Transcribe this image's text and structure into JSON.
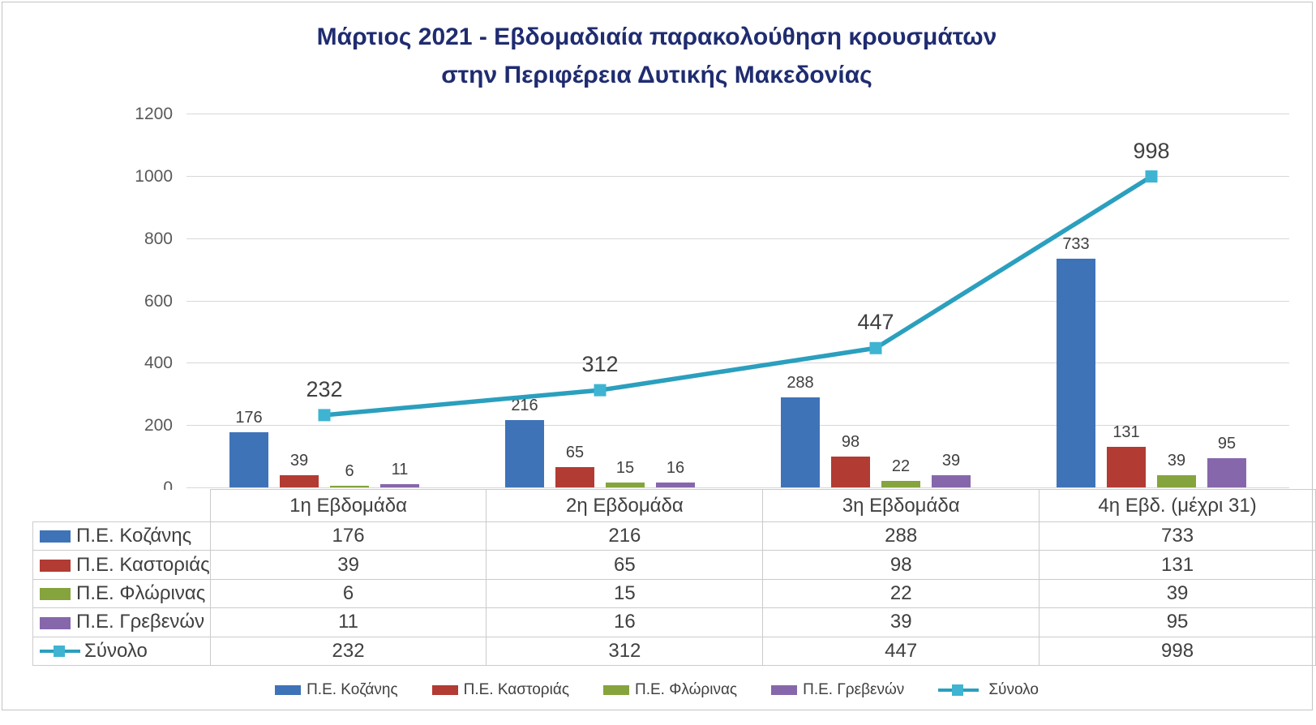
{
  "title": {
    "line1": "Μάρτιος 2021 - Εβδομαδιαία παρακολούθηση κρουσμάτων",
    "line2": "στην Περιφέρεια Δυτικής Μακεδονίας",
    "color": "#1f2c70"
  },
  "chart_data": {
    "type": "bar",
    "subtype": "grouped-bars-with-line-and-data-table",
    "categories": [
      "1η Εβδομάδα",
      "2η Εβδομάδα",
      "3η Εβδομάδα",
      "4η Εβδ. (μέχρι 31)"
    ],
    "series": [
      {
        "name": "Π.Ε. Κοζάνης",
        "kind": "bar",
        "color": "#3e73b8",
        "values": [
          176,
          216,
          288,
          733
        ]
      },
      {
        "name": "Π.Ε. Καστοριάς",
        "kind": "bar",
        "color": "#b23b33",
        "values": [
          39,
          65,
          98,
          131
        ]
      },
      {
        "name": "Π.Ε. Φλώρινας",
        "kind": "bar",
        "color": "#85a43d",
        "values": [
          6,
          15,
          22,
          39
        ]
      },
      {
        "name": "Π.Ε. Γρεβενών",
        "kind": "bar",
        "color": "#8767ab",
        "values": [
          11,
          16,
          39,
          95
        ]
      },
      {
        "name": "Σύνολο",
        "kind": "line",
        "color": "#2b9fbe",
        "marker_color": "#3eb4d2",
        "values": [
          232,
          312,
          447,
          998
        ]
      }
    ],
    "ylabel": "",
    "xlabel": "",
    "ylim": [
      0,
      1200
    ],
    "y_ticks": [
      0,
      200,
      400,
      600,
      800,
      1000,
      1200
    ],
    "grid": "horizontal",
    "legend_position": "bottom",
    "data_labels": true,
    "data_table_shown": true,
    "colors": {
      "gridline": "#d8d8d8",
      "table_border": "#cbcbcb",
      "label_text": "#404040",
      "axis_text": "#595959"
    }
  }
}
